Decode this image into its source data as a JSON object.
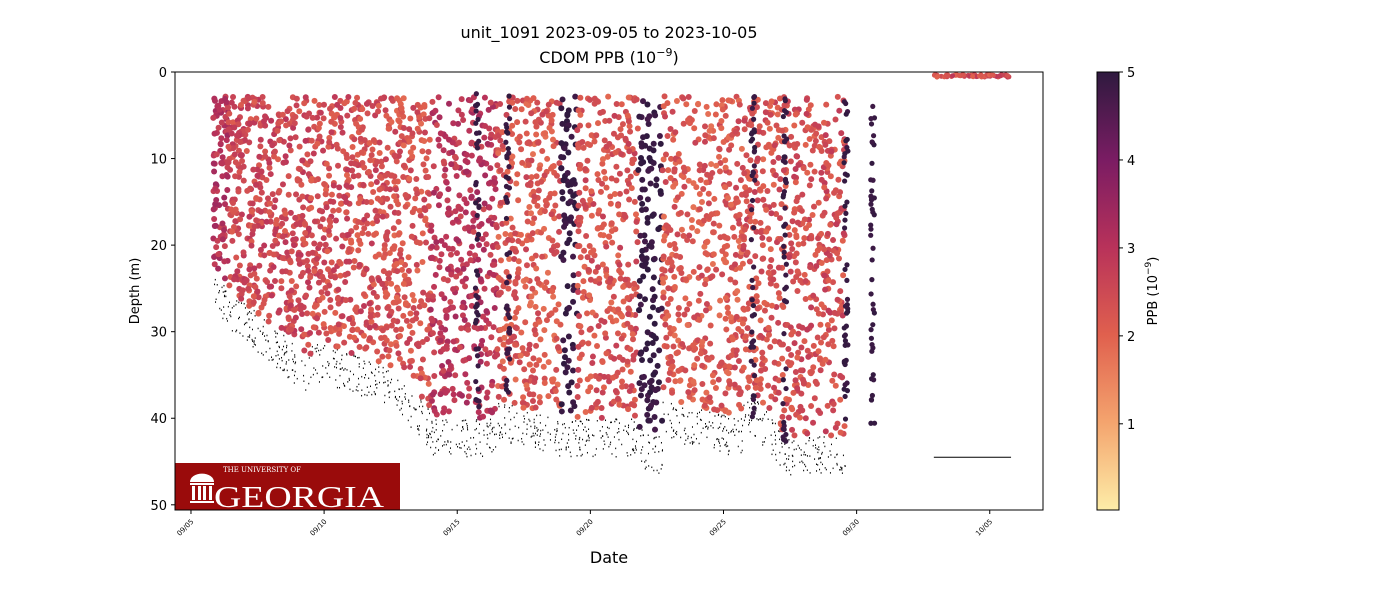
{
  "chart_data": {
    "type": "scatter",
    "title": "unit_1091 2023-09-05 to 2023-10-05",
    "subtitle": "CDOM PPB (10",
    "subtitle_exp": "−9",
    "subtitle_end": ")",
    "xlabel": "Date",
    "ylabel": "Depth (m)",
    "x_unit": "days since 09/05",
    "xlim": [
      -0.6,
      32.0
    ],
    "ylim": [
      50.6,
      0
    ],
    "x_ticks": [
      {
        "day": 0,
        "label": "09/05"
      },
      {
        "day": 5,
        "label": "09/10"
      },
      {
        "day": 10,
        "label": "09/15"
      },
      {
        "day": 15,
        "label": "09/20"
      },
      {
        "day": 20,
        "label": "09/25"
      },
      {
        "day": 25,
        "label": "09/30"
      },
      {
        "day": 30,
        "label": "10/05"
      }
    ],
    "y_ticks": [
      "0",
      "10",
      "20",
      "30",
      "40",
      "50"
    ],
    "colorbar": {
      "label": "PPB (10",
      "label_exp": "−9",
      "label_end": ")",
      "range": [
        0.02,
        5
      ],
      "ticks": [
        "1",
        "2",
        "3",
        "4",
        "5"
      ],
      "colors": [
        "#fdeda8",
        "#f4a46e",
        "#e0604e",
        "#b8325a",
        "#7a1c63",
        "#2f1a3f"
      ]
    },
    "profile_regions": [
      {
        "start": 0.8,
        "end": 1.4,
        "max_depth_start": 22,
        "max_depth_end": 25,
        "mean_ppb": 3.0
      },
      {
        "start": 1.4,
        "end": 4.5,
        "max_depth_start": 25,
        "max_depth_end": 33,
        "mean_ppb": 2.5
      },
      {
        "start": 4.5,
        "end": 7.5,
        "max_depth_start": 31,
        "max_depth_end": 34,
        "mean_ppb": 2.4
      },
      {
        "start": 7.5,
        "end": 9.0,
        "max_depth_start": 34,
        "max_depth_end": 39,
        "mean_ppb": 2.3
      },
      {
        "start": 9.0,
        "end": 11.5,
        "max_depth_start": 40,
        "max_depth_end": 40,
        "mean_ppb": 2.9
      },
      {
        "start": 11.5,
        "end": 13.9,
        "max_depth_start": 38,
        "max_depth_end": 40,
        "mean_ppb": 2.2
      },
      {
        "start": 13.9,
        "end": 14.5,
        "max_depth_start": 40,
        "max_depth_end": 40,
        "mean_ppb": 4.9
      },
      {
        "start": 14.5,
        "end": 16.8,
        "max_depth_start": 40,
        "max_depth_end": 40,
        "mean_ppb": 2.3
      },
      {
        "start": 16.8,
        "end": 17.7,
        "max_depth_start": 41,
        "max_depth_end": 42,
        "mean_ppb": 4.9
      },
      {
        "start": 17.7,
        "end": 20.7,
        "max_depth_start": 38,
        "max_depth_end": 40,
        "mean_ppb": 2.2
      },
      {
        "start": 20.7,
        "end": 22.4,
        "max_depth_start": 36,
        "max_depth_end": 42,
        "mean_ppb": 2.3
      },
      {
        "start": 22.4,
        "end": 24.6,
        "max_depth_start": 42,
        "max_depth_end": 42,
        "mean_ppb": 2.4
      }
    ],
    "high_ppb_casts": [
      {
        "day": 10.75,
        "max_depth": 40
      },
      {
        "day": 11.9,
        "max_depth": 38
      },
      {
        "day": 21.1,
        "max_depth": 40
      },
      {
        "day": 22.3,
        "max_depth": 43
      },
      {
        "day": 24.6,
        "max_depth": 41
      },
      {
        "day": 25.6,
        "max_depth": 41
      }
    ],
    "surface_segment": {
      "start": 27.9,
      "end": 30.9,
      "depth": 0.3,
      "mean_ppb": 2.4
    },
    "bottom_line": {
      "start": 27.9,
      "end": 30.8,
      "depth": 44.5
    }
  },
  "logo": {
    "top_text": "THE UNIVERSITY OF",
    "main_text": "GEORGIA"
  }
}
